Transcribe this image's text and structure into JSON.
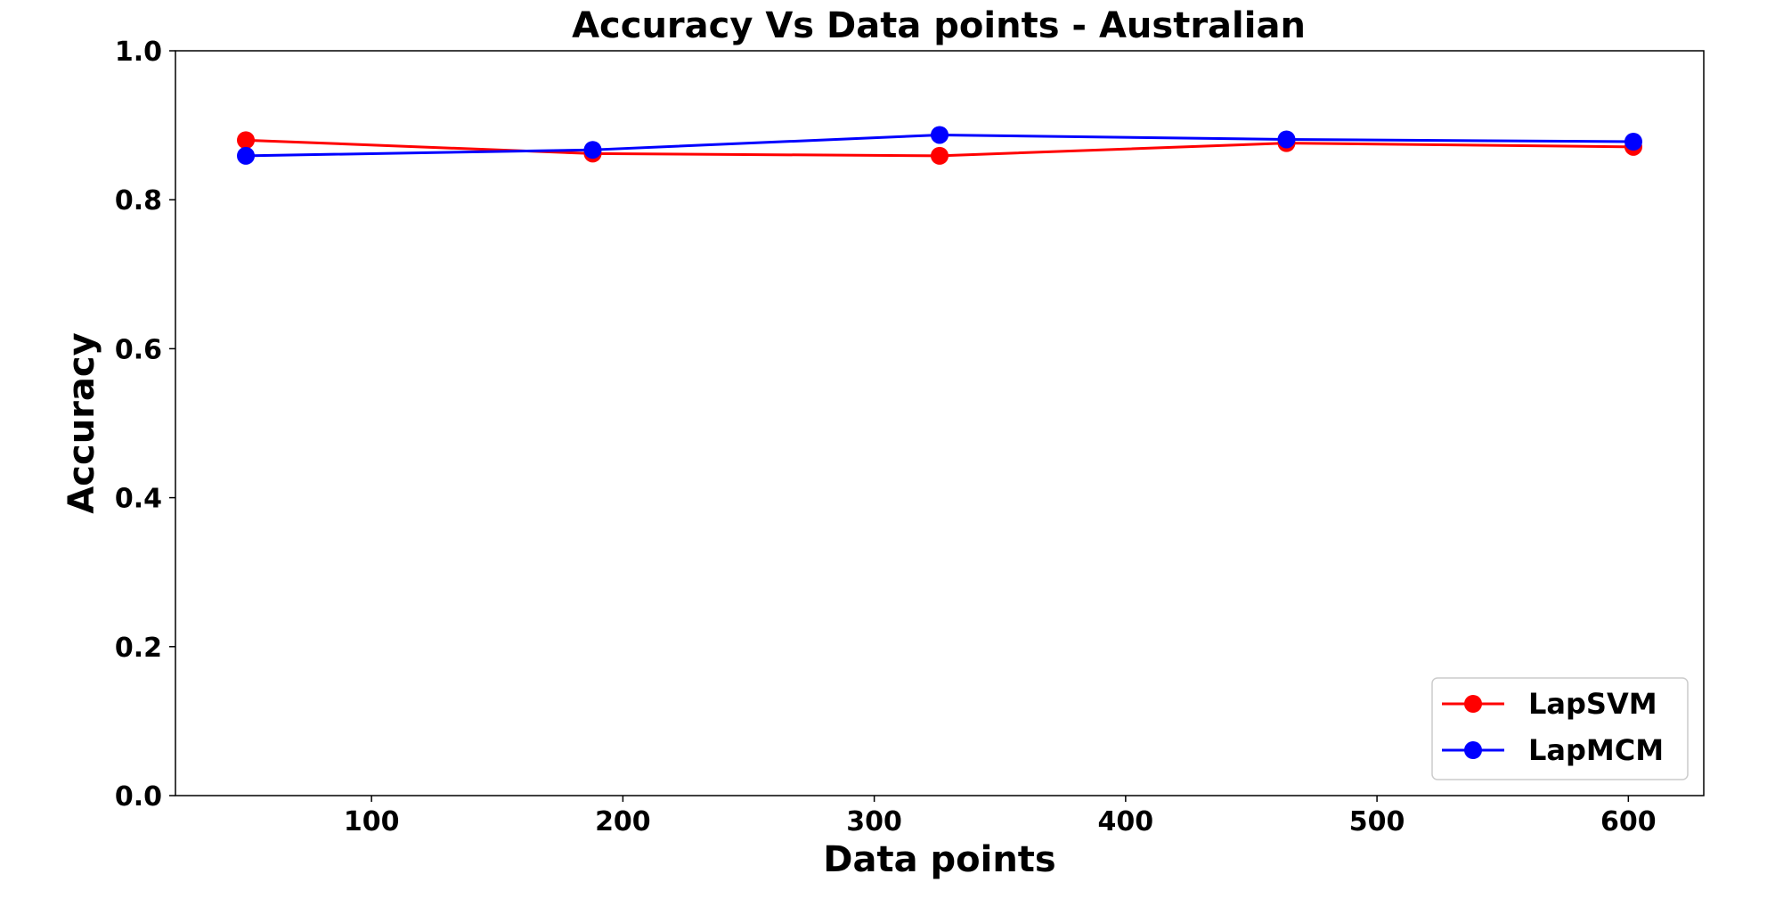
{
  "chart_data": {
    "type": "line",
    "title": "Accuracy Vs Data points - Australian",
    "xlabel": "Data points",
    "ylabel": "Accuracy",
    "xlim": [
      22,
      630
    ],
    "ylim": [
      0.0,
      1.0
    ],
    "x_ticks": [
      100,
      200,
      300,
      400,
      500,
      600
    ],
    "x_tick_labels": [
      "100",
      "200",
      "300",
      "400",
      "500",
      "600"
    ],
    "y_ticks": [
      0.0,
      0.2,
      0.4,
      0.6,
      0.8,
      1.0
    ],
    "y_tick_labels": [
      "0.0",
      "0.2",
      "0.4",
      "0.6",
      "0.8",
      "1.0"
    ],
    "grid": false,
    "legend_position": "bottom-right",
    "x": [
      50,
      188,
      326,
      464,
      602
    ],
    "series": [
      {
        "name": "LapSVM",
        "color": "#ff0000",
        "marker": "circle",
        "values": [
          0.88,
          0.862,
          0.859,
          0.876,
          0.871
        ]
      },
      {
        "name": "LapMCM",
        "color": "#0000ff",
        "marker": "circle",
        "values": [
          0.859,
          0.867,
          0.887,
          0.881,
          0.878
        ]
      }
    ]
  }
}
